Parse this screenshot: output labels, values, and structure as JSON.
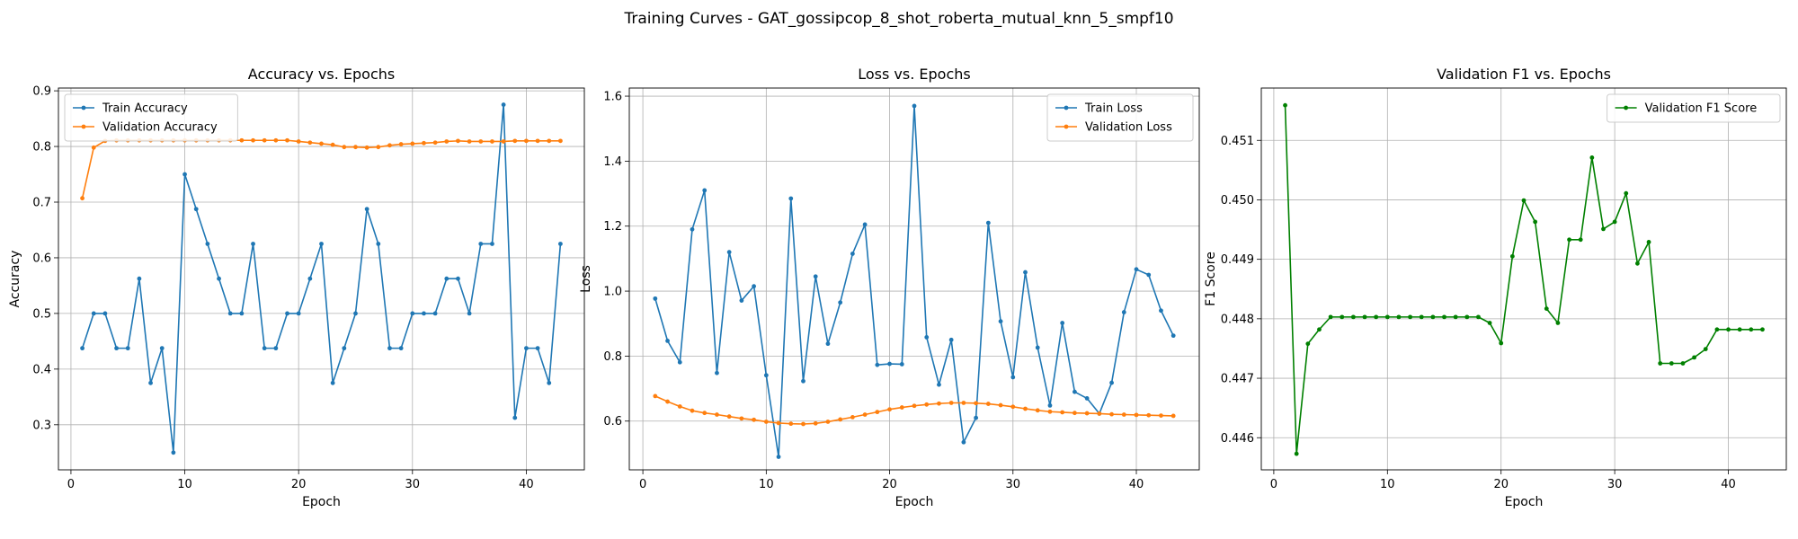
{
  "figure": {
    "suptitle": "Training Curves - GAT_gossipcop_8_shot_roberta_mutual_knn_5_smpf10"
  },
  "chart_data": [
    {
      "type": "line",
      "title": "Accuracy vs. Epochs",
      "xlabel": "Epoch",
      "ylabel": "Accuracy",
      "xlim": [
        -1.1,
        45.1
      ],
      "ylim": [
        0.219,
        0.905
      ],
      "xticks": [
        0,
        10,
        20,
        30,
        40
      ],
      "yticks": [
        0.3,
        0.4,
        0.5,
        0.6,
        0.7,
        0.8,
        0.9
      ],
      "ytick_decimals": 1,
      "grid": true,
      "legend": "upper left",
      "x": [
        1,
        2,
        3,
        4,
        5,
        6,
        7,
        8,
        9,
        10,
        11,
        12,
        13,
        14,
        15,
        16,
        17,
        18,
        19,
        20,
        21,
        22,
        23,
        24,
        25,
        26,
        27,
        28,
        29,
        30,
        31,
        32,
        33,
        34,
        35,
        36,
        37,
        38,
        39,
        40,
        41,
        42,
        43
      ],
      "series": [
        {
          "name": "Train Accuracy",
          "color": "#1f77b4",
          "values": [
            0.4375,
            0.5,
            0.5,
            0.4375,
            0.4375,
            0.5625,
            0.375,
            0.4375,
            0.25,
            0.75,
            0.6875,
            0.625,
            0.5625,
            0.5,
            0.5,
            0.625,
            0.4375,
            0.4375,
            0.5,
            0.5,
            0.5625,
            0.625,
            0.375,
            0.4375,
            0.5,
            0.6875,
            0.625,
            0.4375,
            0.4375,
            0.5,
            0.5,
            0.5,
            0.5625,
            0.5625,
            0.5,
            0.625,
            0.625,
            0.875,
            0.3125,
            0.4375,
            0.4375,
            0.375,
            0.625
          ]
        },
        {
          "name": "Validation Accuracy",
          "color": "#ff7f0e",
          "values": [
            0.707,
            0.798,
            0.81,
            0.811,
            0.811,
            0.811,
            0.811,
            0.811,
            0.811,
            0.811,
            0.811,
            0.811,
            0.811,
            0.811,
            0.811,
            0.811,
            0.811,
            0.811,
            0.811,
            0.809,
            0.807,
            0.805,
            0.803,
            0.799,
            0.799,
            0.798,
            0.799,
            0.802,
            0.804,
            0.805,
            0.806,
            0.807,
            0.809,
            0.81,
            0.809,
            0.809,
            0.809,
            0.809,
            0.81,
            0.81,
            0.81,
            0.81,
            0.81
          ]
        }
      ]
    },
    {
      "type": "line",
      "title": "Loss vs. Epochs",
      "xlabel": "Epoch",
      "ylabel": "Loss",
      "xlim": [
        -1.1,
        45.1
      ],
      "ylim": [
        0.45,
        1.625
      ],
      "xticks": [
        0,
        10,
        20,
        30,
        40
      ],
      "yticks": [
        0.6,
        0.8,
        1.0,
        1.2,
        1.4,
        1.6
      ],
      "ytick_decimals": 1,
      "grid": true,
      "legend": "upper right",
      "x": [
        1,
        2,
        3,
        4,
        5,
        6,
        7,
        8,
        9,
        10,
        11,
        12,
        13,
        14,
        15,
        16,
        17,
        18,
        19,
        20,
        21,
        22,
        23,
        24,
        25,
        26,
        27,
        28,
        29,
        30,
        31,
        32,
        33,
        34,
        35,
        36,
        37,
        38,
        39,
        40,
        41,
        42,
        43
      ],
      "series": [
        {
          "name": "Train Loss",
          "color": "#1f77b4",
          "values": [
            0.977,
            0.847,
            0.781,
            1.19,
            1.31,
            0.748,
            1.12,
            0.971,
            1.015,
            0.741,
            0.49,
            1.285,
            0.723,
            1.045,
            0.838,
            0.965,
            1.115,
            1.205,
            0.773,
            0.776,
            0.775,
            1.57,
            0.858,
            0.712,
            0.85,
            0.535,
            0.61,
            1.21,
            0.907,
            0.735,
            1.058,
            0.826,
            0.648,
            0.902,
            0.69,
            0.67,
            0.623,
            0.718,
            0.935,
            1.067,
            1.05,
            0.94,
            0.863
          ]
        },
        {
          "name": "Validation Loss",
          "color": "#ff7f0e",
          "values": [
            0.677,
            0.66,
            0.645,
            0.632,
            0.625,
            0.62,
            0.614,
            0.608,
            0.604,
            0.598,
            0.594,
            0.592,
            0.591,
            0.593,
            0.598,
            0.605,
            0.612,
            0.62,
            0.628,
            0.636,
            0.642,
            0.647,
            0.651,
            0.654,
            0.656,
            0.656,
            0.655,
            0.653,
            0.649,
            0.644,
            0.638,
            0.633,
            0.629,
            0.627,
            0.625,
            0.624,
            0.623,
            0.621,
            0.62,
            0.619,
            0.618,
            0.617,
            0.616
          ]
        }
      ]
    },
    {
      "type": "line",
      "title": "Validation F1 vs. Epochs",
      "xlabel": "Epoch",
      "ylabel": "F1 Score",
      "xlim": [
        -1.1,
        45.1
      ],
      "ylim": [
        0.44546,
        0.45188
      ],
      "xticks": [
        0,
        10,
        20,
        30,
        40
      ],
      "yticks": [
        0.446,
        0.447,
        0.448,
        0.449,
        0.45,
        0.451
      ],
      "ytick_decimals": 3,
      "grid": true,
      "legend": "upper right",
      "x": [
        1,
        2,
        3,
        4,
        5,
        6,
        7,
        8,
        9,
        10,
        11,
        12,
        13,
        14,
        15,
        16,
        17,
        18,
        19,
        20,
        21,
        22,
        23,
        24,
        25,
        26,
        27,
        28,
        29,
        30,
        31,
        32,
        33,
        34,
        35,
        36,
        37,
        38,
        39,
        40,
        41,
        42,
        43
      ],
      "series": [
        {
          "name": "Validation F1 Score",
          "color": "#008000",
          "values": [
            0.45159,
            0.44573,
            0.44758,
            0.44782,
            0.44803,
            0.44803,
            0.44803,
            0.44803,
            0.44803,
            0.44803,
            0.44803,
            0.44803,
            0.44803,
            0.44803,
            0.44803,
            0.44803,
            0.44803,
            0.44803,
            0.44793,
            0.44759,
            0.44905,
            0.44999,
            0.44963,
            0.44817,
            0.44793,
            0.44933,
            0.44933,
            0.45071,
            0.44951,
            0.44963,
            0.45011,
            0.44893,
            0.44929,
            0.44725,
            0.44725,
            0.44725,
            0.44735,
            0.44749,
            0.44782,
            0.44782,
            0.44782,
            0.44782,
            0.44782
          ]
        }
      ]
    }
  ]
}
